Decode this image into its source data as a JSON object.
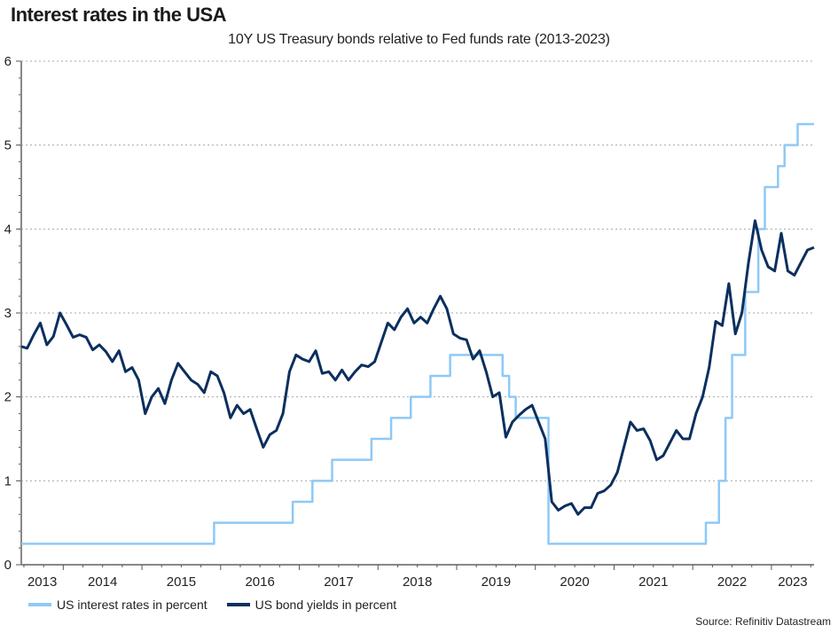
{
  "title": "Interest rates in the USA",
  "subtitle": "10Y US Treasury bonds relative to Fed funds rate (2013-2023)",
  "source": "Source: Refinitiv Datastream",
  "colors": {
    "fed": "#8ec9f7",
    "bond": "#0b2f5e",
    "grid": "#a8a8a8",
    "axis": "#888888"
  },
  "chart_data": {
    "type": "line",
    "title": "10Y US Treasury bonds relative to Fed funds rate (2013-2023)",
    "xlim": [
      "2013-06",
      "2023-07"
    ],
    "ylim": [
      0,
      6
    ],
    "yticks": [
      "0",
      "1",
      "2",
      "3",
      "4",
      "5",
      "6"
    ],
    "xtick_labels": [
      {
        "label": "2013",
        "year": 2013
      },
      {
        "label": "2014",
        "year": 2014
      },
      {
        "label": "2015",
        "year": 2015
      },
      {
        "label": "2016",
        "year": 2016
      },
      {
        "label": "2017",
        "year": 2017
      },
      {
        "label": "2018",
        "year": 2018
      },
      {
        "label": "2019",
        "year": 2019
      },
      {
        "label": "2020",
        "year": 2020
      },
      {
        "label": "2021",
        "year": 2021
      },
      {
        "label": "2022",
        "year": 2022
      },
      {
        "label": "2023",
        "year": 2023
      }
    ],
    "grid": "horizontal dotted",
    "legend_placement": "bottom-left",
    "series": [
      {
        "name": "US interest rates in percent",
        "style": "step",
        "points": [
          [
            "2013-06",
            0.25
          ],
          [
            "2015-12",
            0.5
          ],
          [
            "2016-12",
            0.75
          ],
          [
            "2017-03",
            1.0
          ],
          [
            "2017-06",
            1.25
          ],
          [
            "2017-12",
            1.5
          ],
          [
            "2018-03",
            1.75
          ],
          [
            "2018-06",
            2.0
          ],
          [
            "2018-09",
            2.25
          ],
          [
            "2018-12",
            2.5
          ],
          [
            "2019-08",
            2.25
          ],
          [
            "2019-09",
            2.0
          ],
          [
            "2019-10",
            1.75
          ],
          [
            "2020-03",
            0.25
          ],
          [
            "2022-03",
            0.5
          ],
          [
            "2022-05",
            1.0
          ],
          [
            "2022-06",
            1.75
          ],
          [
            "2022-07",
            2.5
          ],
          [
            "2022-09",
            3.25
          ],
          [
            "2022-11",
            4.0
          ],
          [
            "2022-12",
            4.5
          ],
          [
            "2023-02",
            4.75
          ],
          [
            "2023-03",
            5.0
          ],
          [
            "2023-05",
            5.25
          ],
          [
            "2023-07",
            5.25
          ]
        ]
      },
      {
        "name": "US bond yields in percent",
        "style": "line",
        "points": [
          [
            "2013-06",
            2.6
          ],
          [
            "2013-07",
            2.58
          ],
          [
            "2013-08",
            2.74
          ],
          [
            "2013-09",
            2.88
          ],
          [
            "2013-10",
            2.62
          ],
          [
            "2013-11",
            2.72
          ],
          [
            "2013-12",
            3.0
          ],
          [
            "2014-01",
            2.86
          ],
          [
            "2014-02",
            2.71
          ],
          [
            "2014-03",
            2.74
          ],
          [
            "2014-04",
            2.71
          ],
          [
            "2014-05",
            2.56
          ],
          [
            "2014-06",
            2.62
          ],
          [
            "2014-07",
            2.54
          ],
          [
            "2014-08",
            2.42
          ],
          [
            "2014-09",
            2.55
          ],
          [
            "2014-10",
            2.3
          ],
          [
            "2014-11",
            2.35
          ],
          [
            "2014-12",
            2.2
          ],
          [
            "2015-01",
            1.8
          ],
          [
            "2015-02",
            2.0
          ],
          [
            "2015-03",
            2.1
          ],
          [
            "2015-04",
            1.92
          ],
          [
            "2015-05",
            2.2
          ],
          [
            "2015-06",
            2.4
          ],
          [
            "2015-07",
            2.3
          ],
          [
            "2015-08",
            2.2
          ],
          [
            "2015-09",
            2.15
          ],
          [
            "2015-10",
            2.05
          ],
          [
            "2015-11",
            2.3
          ],
          [
            "2015-12",
            2.25
          ],
          [
            "2016-01",
            2.05
          ],
          [
            "2016-02",
            1.75
          ],
          [
            "2016-03",
            1.9
          ],
          [
            "2016-04",
            1.8
          ],
          [
            "2016-05",
            1.85
          ],
          [
            "2016-06",
            1.62
          ],
          [
            "2016-07",
            1.4
          ],
          [
            "2016-08",
            1.55
          ],
          [
            "2016-09",
            1.6
          ],
          [
            "2016-10",
            1.8
          ],
          [
            "2016-11",
            2.3
          ],
          [
            "2016-12",
            2.5
          ],
          [
            "2017-01",
            2.45
          ],
          [
            "2017-02",
            2.42
          ],
          [
            "2017-03",
            2.55
          ],
          [
            "2017-04",
            2.28
          ],
          [
            "2017-05",
            2.3
          ],
          [
            "2017-06",
            2.2
          ],
          [
            "2017-07",
            2.32
          ],
          [
            "2017-08",
            2.2
          ],
          [
            "2017-09",
            2.3
          ],
          [
            "2017-10",
            2.38
          ],
          [
            "2017-11",
            2.36
          ],
          [
            "2017-12",
            2.42
          ],
          [
            "2018-01",
            2.65
          ],
          [
            "2018-02",
            2.88
          ],
          [
            "2018-03",
            2.8
          ],
          [
            "2018-04",
            2.95
          ],
          [
            "2018-05",
            3.05
          ],
          [
            "2018-06",
            2.88
          ],
          [
            "2018-07",
            2.95
          ],
          [
            "2018-08",
            2.88
          ],
          [
            "2018-09",
            3.05
          ],
          [
            "2018-10",
            3.2
          ],
          [
            "2018-11",
            3.05
          ],
          [
            "2018-12",
            2.75
          ],
          [
            "2019-01",
            2.7
          ],
          [
            "2019-02",
            2.68
          ],
          [
            "2019-03",
            2.45
          ],
          [
            "2019-04",
            2.55
          ],
          [
            "2019-05",
            2.3
          ],
          [
            "2019-06",
            2.0
          ],
          [
            "2019-07",
            2.05
          ],
          [
            "2019-08",
            1.52
          ],
          [
            "2019-09",
            1.7
          ],
          [
            "2019-10",
            1.78
          ],
          [
            "2019-11",
            1.85
          ],
          [
            "2019-12",
            1.9
          ],
          [
            "2020-01",
            1.7
          ],
          [
            "2020-02",
            1.5
          ],
          [
            "2020-03",
            0.75
          ],
          [
            "2020-04",
            0.65
          ],
          [
            "2020-05",
            0.7
          ],
          [
            "2020-06",
            0.73
          ],
          [
            "2020-07",
            0.6
          ],
          [
            "2020-08",
            0.68
          ],
          [
            "2020-09",
            0.68
          ],
          [
            "2020-10",
            0.85
          ],
          [
            "2020-11",
            0.88
          ],
          [
            "2020-12",
            0.95
          ],
          [
            "2021-01",
            1.1
          ],
          [
            "2021-02",
            1.4
          ],
          [
            "2021-03",
            1.7
          ],
          [
            "2021-04",
            1.6
          ],
          [
            "2021-05",
            1.62
          ],
          [
            "2021-06",
            1.48
          ],
          [
            "2021-07",
            1.25
          ],
          [
            "2021-08",
            1.3
          ],
          [
            "2021-09",
            1.45
          ],
          [
            "2021-10",
            1.6
          ],
          [
            "2021-11",
            1.5
          ],
          [
            "2021-12",
            1.5
          ],
          [
            "2022-01",
            1.8
          ],
          [
            "2022-02",
            2.0
          ],
          [
            "2022-03",
            2.35
          ],
          [
            "2022-04",
            2.9
          ],
          [
            "2022-05",
            2.85
          ],
          [
            "2022-06",
            3.35
          ],
          [
            "2022-07",
            2.75
          ],
          [
            "2022-08",
            3.0
          ],
          [
            "2022-09",
            3.6
          ],
          [
            "2022-10",
            4.1
          ],
          [
            "2022-11",
            3.75
          ],
          [
            "2022-12",
            3.55
          ],
          [
            "2023-01",
            3.5
          ],
          [
            "2023-02",
            3.95
          ],
          [
            "2023-03",
            3.5
          ],
          [
            "2023-04",
            3.45
          ],
          [
            "2023-05",
            3.6
          ],
          [
            "2023-06",
            3.75
          ],
          [
            "2023-07",
            3.78
          ]
        ]
      }
    ]
  }
}
